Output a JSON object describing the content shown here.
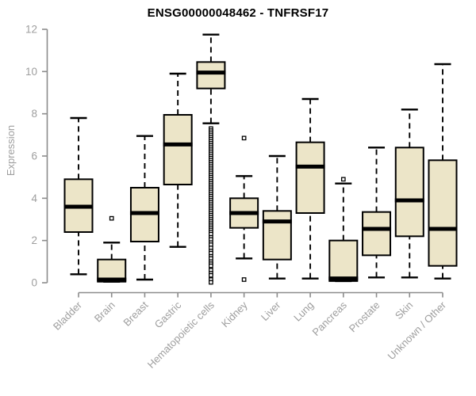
{
  "chart_data": {
    "type": "boxplot",
    "title": "ENSG00000048462 - TNFRSF17",
    "xlabel": "",
    "ylabel": "Expression",
    "ylim": [
      0,
      12
    ],
    "yticks": [
      0,
      2,
      4,
      6,
      8,
      10,
      12
    ],
    "grid": false,
    "legend": "none",
    "categories": [
      "Bladder",
      "Brain",
      "Breast",
      "Gastric",
      "Hematopoietic cells",
      "Kidney",
      "Liver",
      "Lung",
      "Pancreas",
      "Prostate",
      "Skin",
      "Unknown / Other"
    ],
    "series": [
      {
        "name": "Bladder",
        "whisker_low": 0.4,
        "q1": 2.4,
        "median": 3.6,
        "q3": 4.9,
        "whisker_high": 7.8,
        "outliers": []
      },
      {
        "name": "Brain",
        "whisker_low": 0.05,
        "q1": 0.05,
        "median": 0.15,
        "q3": 1.1,
        "whisker_high": 1.9,
        "outliers": [
          3.05
        ]
      },
      {
        "name": "Breast",
        "whisker_low": 0.15,
        "q1": 1.95,
        "median": 3.3,
        "q3": 4.5,
        "whisker_high": 6.95,
        "outliers": []
      },
      {
        "name": "Gastric",
        "whisker_low": 1.7,
        "q1": 4.65,
        "median": 6.55,
        "q3": 7.95,
        "whisker_high": 9.9,
        "outliers": []
      },
      {
        "name": "Hematopoietic cells",
        "whisker_low": 7.55,
        "q1": 9.2,
        "median": 9.95,
        "q3": 10.45,
        "whisker_high": 11.75,
        "outliers": [
          7.3,
          7.2,
          7.1,
          7.0,
          6.9,
          6.8,
          6.7,
          6.6,
          6.5,
          6.4,
          6.3,
          6.2,
          6.1,
          6.0,
          5.9,
          5.8,
          5.7,
          5.6,
          5.5,
          5.4,
          5.3,
          5.2,
          5.1,
          5.0,
          4.9,
          4.8,
          4.7,
          4.6,
          4.5,
          4.4,
          4.3,
          4.2,
          4.1,
          4.0,
          3.9,
          3.8,
          3.7,
          3.6,
          3.5,
          3.4,
          3.3,
          3.2,
          3.1,
          3.0,
          2.9,
          2.8,
          2.7,
          2.6,
          2.5,
          2.4,
          2.3,
          2.15,
          2.05,
          1.9,
          1.8,
          1.65,
          1.5,
          1.4,
          1.25,
          1.15,
          1.0,
          0.9,
          0.8,
          0.6,
          0.45,
          0.35,
          0.15,
          0.02
        ]
      },
      {
        "name": "Kidney",
        "whisker_low": 1.15,
        "q1": 2.6,
        "median": 3.3,
        "q3": 4.0,
        "whisker_high": 5.05,
        "outliers": [
          6.85,
          0.15
        ]
      },
      {
        "name": "Liver",
        "whisker_low": 0.2,
        "q1": 1.1,
        "median": 2.9,
        "q3": 3.4,
        "whisker_high": 6.0,
        "outliers": []
      },
      {
        "name": "Lung",
        "whisker_low": 0.2,
        "q1": 3.3,
        "median": 5.5,
        "q3": 6.65,
        "whisker_high": 8.7,
        "outliers": []
      },
      {
        "name": "Pancreas",
        "whisker_low": 0.08,
        "q1": 0.08,
        "median": 0.2,
        "q3": 2.0,
        "whisker_high": 4.7,
        "outliers": [
          4.9
        ]
      },
      {
        "name": "Prostate",
        "whisker_low": 0.25,
        "q1": 1.3,
        "median": 2.55,
        "q3": 3.35,
        "whisker_high": 6.4,
        "outliers": []
      },
      {
        "name": "Skin",
        "whisker_low": 0.25,
        "q1": 2.2,
        "median": 3.9,
        "q3": 6.4,
        "whisker_high": 8.2,
        "outliers": []
      },
      {
        "name": "Unknown / Other",
        "whisker_low": 0.2,
        "q1": 0.8,
        "median": 2.55,
        "q3": 5.8,
        "whisker_high": 10.35,
        "outliers": []
      }
    ],
    "colors": {
      "box_fill": "#ece5c8",
      "box_stroke": "#000000",
      "median": "#000000",
      "whisker": "#000000",
      "outlier_fill": "#ffffff",
      "axis": "#8c8c8c",
      "labels": "#9e9e9e",
      "title": "#000000"
    }
  }
}
